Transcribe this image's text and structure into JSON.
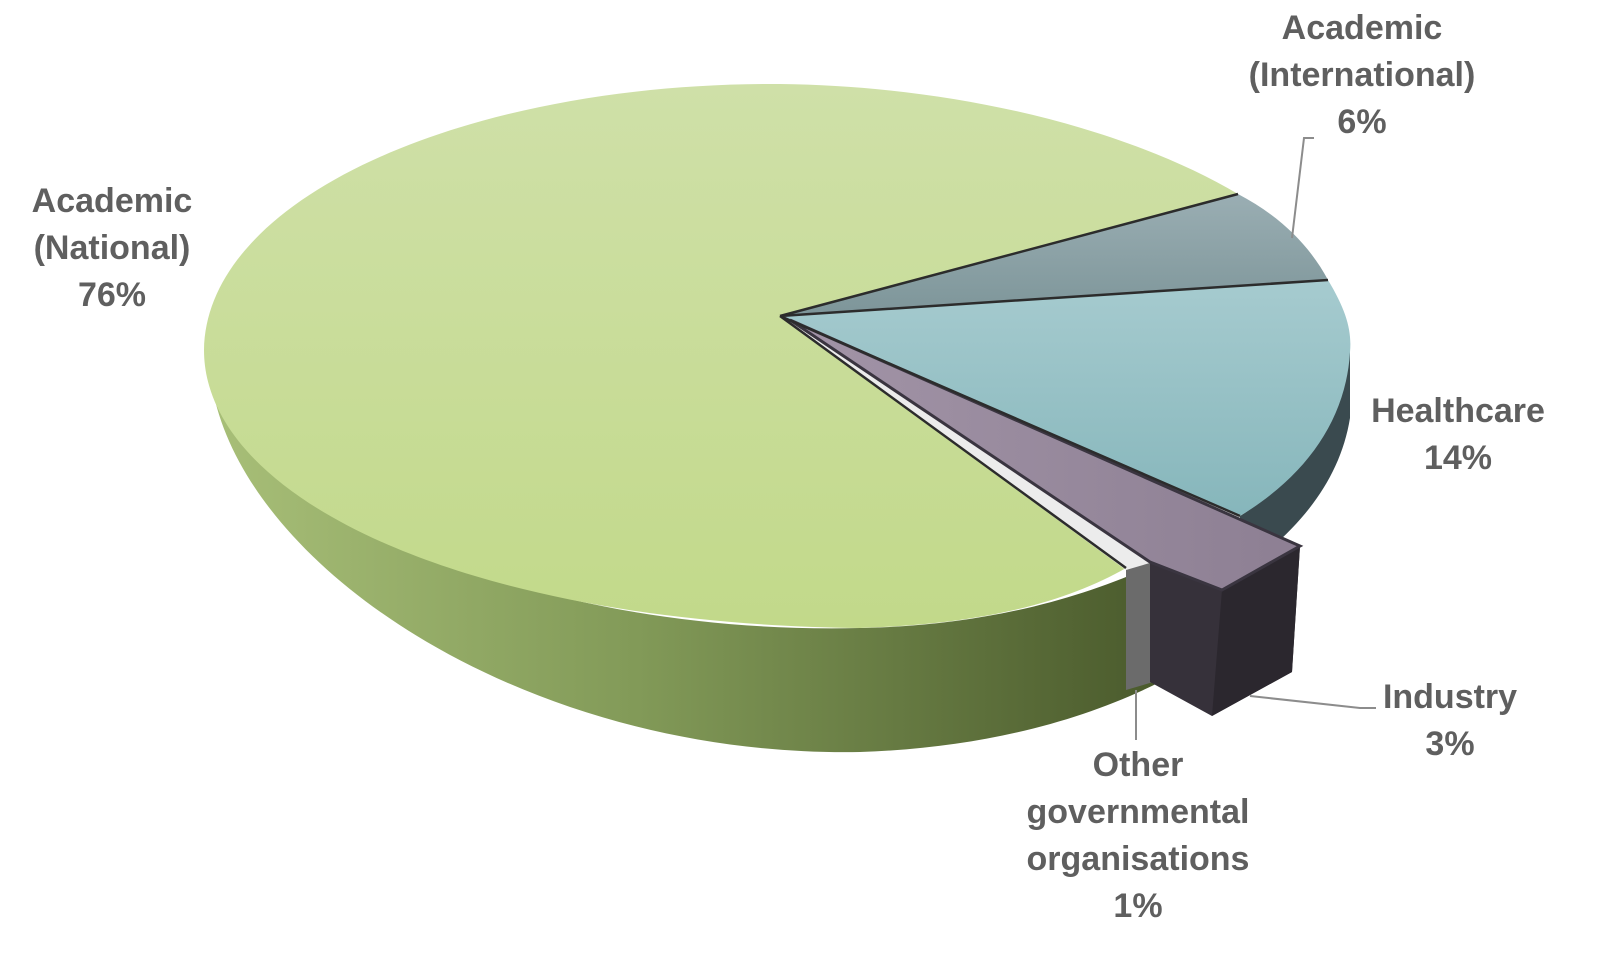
{
  "chart_data": {
    "type": "pie",
    "style": "3d-exploded",
    "categories": [
      "Academic (National)",
      "Academic (International)",
      "Healthcare",
      "Industry",
      "Other governmental organisations"
    ],
    "values": [
      76,
      6,
      14,
      3,
      1
    ],
    "unit": "%",
    "labels": [
      {
        "lines": [
          "Academic",
          "(National)",
          "76%"
        ]
      },
      {
        "lines": [
          "Academic",
          "(International)",
          "6%"
        ]
      },
      {
        "lines": [
          "Healthcare",
          "14%"
        ]
      },
      {
        "lines": [
          "Industry",
          "3%"
        ]
      },
      {
        "lines": [
          "Other",
          "governmental",
          "organisations",
          "1%"
        ]
      }
    ],
    "colors": {
      "academic_national_top": "#c9dca0",
      "academic_national_side": "#5e7038",
      "academic_international_top": "#8da3a8",
      "healthcare_top": "#9fc4c8",
      "healthcare_side": "#3a4a4f",
      "industry_top": "#978a9c",
      "industry_side": "#36313a",
      "other_top": "#ececec",
      "other_side": "#6b6b6b",
      "label_text": "#5f5f5f"
    }
  }
}
